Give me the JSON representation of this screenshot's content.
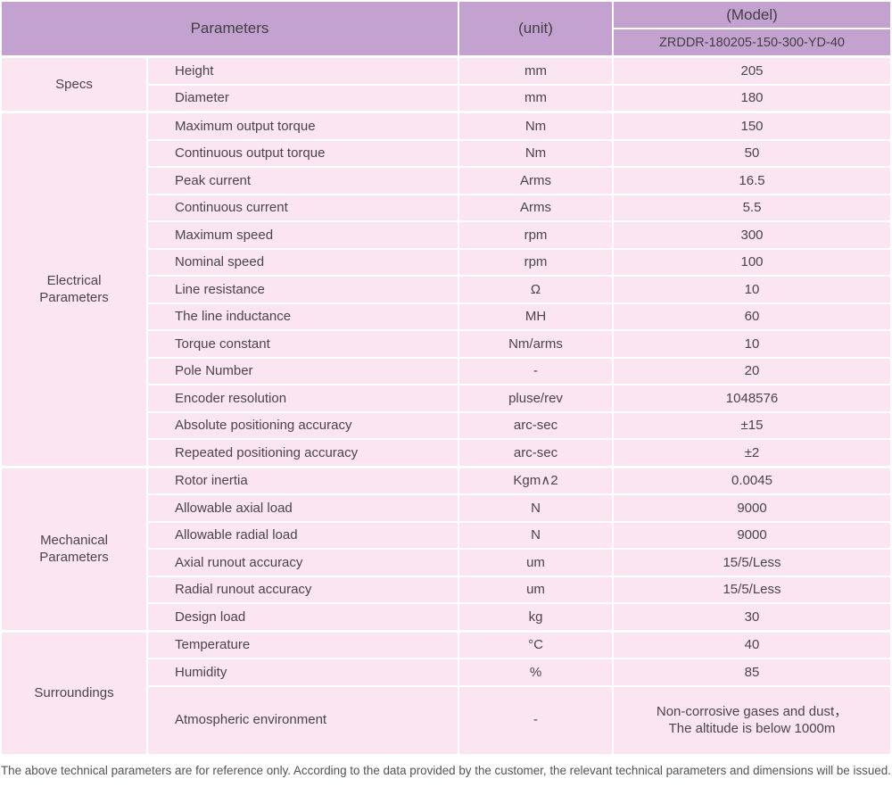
{
  "table": {
    "header": {
      "parameters": "Parameters",
      "unit": "(unit)",
      "model": "(Model)",
      "model_number": "ZRDDR-180205-150-300-YD-40"
    },
    "sections": [
      {
        "label": "Specs",
        "rows": [
          {
            "param": "Height",
            "unit": "mm",
            "value": "205"
          },
          {
            "param": "Diameter",
            "unit": "mm",
            "value": "180"
          }
        ]
      },
      {
        "label": "Electrical Parameters",
        "rows": [
          {
            "param": "Maximum output torque",
            "unit": "Nm",
            "value": "150"
          },
          {
            "param": "Continuous output torque",
            "unit": "Nm",
            "value": "50"
          },
          {
            "param": "Peak current",
            "unit": "Arms",
            "value": "16.5"
          },
          {
            "param": "Continuous current",
            "unit": "Arms",
            "value": "5.5"
          },
          {
            "param": "Maximum speed",
            "unit": "rpm",
            "value": "300"
          },
          {
            "param": "Nominal speed",
            "unit": "rpm",
            "value": "100"
          },
          {
            "param": "Line resistance",
            "unit": "Ω",
            "value": "10"
          },
          {
            "param": "The line inductance",
            "unit": "MH",
            "value": "60"
          },
          {
            "param": "Torque constant",
            "unit": "Nm/arms",
            "value": "10"
          },
          {
            "param": "Pole Number",
            "unit": "-",
            "value": "20"
          },
          {
            "param": "Encoder resolution",
            "unit": "pluse/rev",
            "value": "1048576"
          },
          {
            "param": "Absolute positioning accuracy",
            "unit": "arc-sec",
            "value": "±15"
          },
          {
            "param": "Repeated positioning accuracy",
            "unit": "arc-sec",
            "value": "±2"
          }
        ]
      },
      {
        "label": "Mechanical Parameters",
        "rows": [
          {
            "param": "Rotor inertia",
            "unit": "Kgm∧2",
            "value": "0.0045"
          },
          {
            "param": "Allowable axial load",
            "unit": "N",
            "value": "9000"
          },
          {
            "param": "Allowable radial load",
            "unit": "N",
            "value": "9000"
          },
          {
            "param": "Axial runout accuracy",
            "unit": "um",
            "value": "15/5/Less"
          },
          {
            "param": "Radial runout accuracy",
            "unit": "um",
            "value": "15/5/Less"
          },
          {
            "param": "Design load",
            "unit": "kg",
            "value": "30"
          }
        ]
      },
      {
        "label": "Surroundings",
        "rows": [
          {
            "param": "Temperature",
            "unit": "°C",
            "value": "40"
          },
          {
            "param": "Humidity",
            "unit": "%",
            "value": "85"
          },
          {
            "param": "Atmospheric environment",
            "unit": "-",
            "value": "Non-corrosive gases and dust，\nThe altitude is below 1000m"
          }
        ]
      }
    ]
  },
  "footer": {
    "note": "The above technical parameters are for reference only. According to the data provided by the customer, the relevant technical parameters and dimensions will be issued."
  },
  "colors": {
    "header_bg": "#c4a2d0",
    "row_bg": "#fae5f0",
    "text": "#4b4449"
  }
}
